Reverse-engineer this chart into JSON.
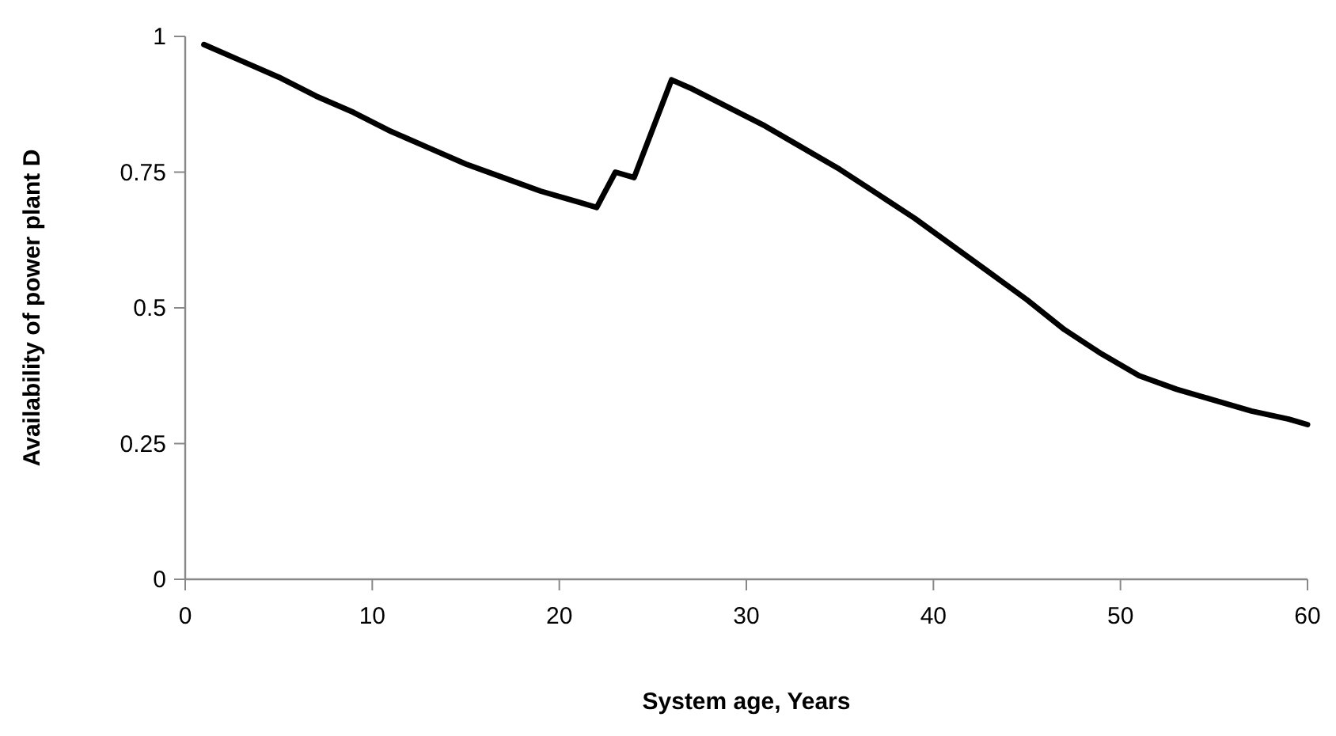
{
  "chart_data": {
    "type": "line",
    "xlabel": "System age, Years",
    "ylabel": "Availability of power plant D",
    "xlim": [
      0,
      60
    ],
    "xticks": [
      0,
      10,
      20,
      30,
      40,
      50,
      60
    ],
    "ylim": [
      0,
      1
    ],
    "yticks": [
      0,
      0.25,
      0.5,
      0.75,
      1
    ],
    "grid": false,
    "marker": "none",
    "line_style": "solid",
    "series": [
      {
        "color": "#000000",
        "x": [
          1,
          3,
          5,
          7,
          9,
          11,
          13,
          15,
          17,
          19,
          21,
          22,
          23,
          24,
          26,
          27,
          29,
          31,
          33,
          35,
          37,
          39,
          41,
          43,
          45,
          47,
          49,
          51,
          53,
          55,
          57,
          59,
          60
        ],
        "values": [
          0.985,
          0.955,
          0.925,
          0.89,
          0.86,
          0.825,
          0.795,
          0.765,
          0.74,
          0.715,
          0.695,
          0.685,
          0.75,
          0.74,
          0.92,
          0.905,
          0.87,
          0.835,
          0.795,
          0.755,
          0.71,
          0.665,
          0.615,
          0.565,
          0.515,
          0.46,
          0.415,
          0.375,
          0.35,
          0.33,
          0.31,
          0.295,
          0.285
        ]
      }
    ]
  }
}
